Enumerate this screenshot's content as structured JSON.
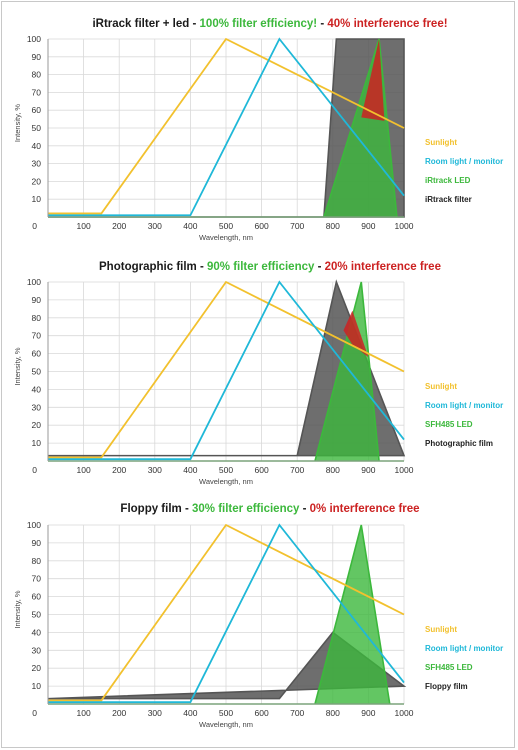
{
  "chart_data": [
    {
      "type": "area",
      "title_parts": [
        {
          "text": "iRtrack filter + led",
          "color": "#1a1a1a"
        },
        {
          "text": " - ",
          "color": "#1a1a1a"
        },
        {
          "text": "100% filter efficiency!",
          "color": "#3cb83c"
        },
        {
          "text": " - ",
          "color": "#1a1a1a"
        },
        {
          "text": "40% interference free!",
          "color": "#cc2222"
        }
      ],
      "xlabel": "Wavelength, nm",
      "ylabel": "Intensity, %",
      "xlim": [
        0,
        1000
      ],
      "ylim": [
        0,
        100
      ],
      "xticks": [
        0,
        100,
        200,
        300,
        400,
        500,
        600,
        700,
        800,
        900,
        1000
      ],
      "yticks": [
        10,
        20,
        30,
        40,
        50,
        60,
        70,
        80,
        90,
        100
      ],
      "grid": true,
      "legend_position": "right",
      "series": [
        {
          "name": "Sunlight",
          "color": "#f2c12e",
          "kind": "line",
          "points": [
            [
              0,
              2
            ],
            [
              150,
              2
            ],
            [
              500,
              100
            ],
            [
              1000,
              50
            ]
          ]
        },
        {
          "name": "Room light / monitor",
          "color": "#1fb8d8",
          "kind": "line",
          "points": [
            [
              0,
              1
            ],
            [
              400,
              1
            ],
            [
              650,
              100
            ],
            [
              1000,
              12
            ]
          ]
        },
        {
          "name": "iRtrack LED",
          "color": "#3cb83c",
          "kind": "area",
          "points": [
            [
              0,
              0
            ],
            [
              775,
              0
            ],
            [
              930,
              100
            ],
            [
              980,
              0
            ],
            [
              1000,
              0
            ]
          ]
        },
        {
          "name": "iRtrack filter",
          "color": "#555555",
          "kind": "area",
          "points": [
            [
              0,
              0
            ],
            [
              775,
              0
            ],
            [
              810,
              100
            ],
            [
              1000,
              100
            ],
            [
              1000,
              0
            ]
          ]
        }
      ],
      "interference": {
        "color": "#cc2222",
        "polygon": [
          [
            880,
            56
          ],
          [
            930,
            100
          ],
          [
            945,
            54
          ]
        ]
      }
    },
    {
      "type": "area",
      "title_parts": [
        {
          "text": "Photographic film",
          "color": "#1a1a1a"
        },
        {
          "text": " - ",
          "color": "#1a1a1a"
        },
        {
          "text": "90% filter efficiency",
          "color": "#3cb83c"
        },
        {
          "text": " - ",
          "color": "#1a1a1a"
        },
        {
          "text": "20% interference free",
          "color": "#cc2222"
        }
      ],
      "xlabel": "Wavelength, nm",
      "ylabel": "Intensity, %",
      "xlim": [
        0,
        1000
      ],
      "ylim": [
        0,
        100
      ],
      "xticks": [
        0,
        100,
        200,
        300,
        400,
        500,
        600,
        700,
        800,
        900,
        1000
      ],
      "yticks": [
        10,
        20,
        30,
        40,
        50,
        60,
        70,
        80,
        90,
        100
      ],
      "grid": true,
      "legend_position": "right",
      "series": [
        {
          "name": "Sunlight",
          "color": "#f2c12e",
          "kind": "line",
          "points": [
            [
              0,
              2
            ],
            [
              150,
              2
            ],
            [
              500,
              100
            ],
            [
              1000,
              50
            ]
          ]
        },
        {
          "name": "Room light / monitor",
          "color": "#1fb8d8",
          "kind": "line",
          "points": [
            [
              0,
              1
            ],
            [
              400,
              1
            ],
            [
              650,
              100
            ],
            [
              1000,
              12
            ]
          ]
        },
        {
          "name": "SFH485 LED",
          "color": "#3cb83c",
          "kind": "area",
          "points": [
            [
              0,
              0
            ],
            [
              750,
              0
            ],
            [
              880,
              100
            ],
            [
              930,
              0
            ],
            [
              1000,
              0
            ]
          ]
        },
        {
          "name": "Photographic film",
          "color": "#555555",
          "kind": "area",
          "points": [
            [
              0,
              3
            ],
            [
              700,
              3
            ],
            [
              810,
              100
            ],
            [
              1000,
              3
            ]
          ]
        }
      ],
      "interference": {
        "color": "#cc2222",
        "polygon": [
          [
            830,
            73
          ],
          [
            855,
            84
          ],
          [
            900,
            58
          ],
          [
            855,
            65
          ]
        ]
      }
    },
    {
      "type": "area",
      "title_parts": [
        {
          "text": "Floppy film",
          "color": "#1a1a1a"
        },
        {
          "text": " - ",
          "color": "#1a1a1a"
        },
        {
          "text": "30% filter efficiency",
          "color": "#3cb83c"
        },
        {
          "text": " - ",
          "color": "#1a1a1a"
        },
        {
          "text": "0% interference free",
          "color": "#cc2222"
        }
      ],
      "xlabel": "Wavelength, nm",
      "ylabel": "Intensity, %",
      "xlim": [
        0,
        1000
      ],
      "ylim": [
        0,
        100
      ],
      "xticks": [
        0,
        100,
        200,
        300,
        400,
        500,
        600,
        700,
        800,
        900,
        1000
      ],
      "yticks": [
        10,
        20,
        30,
        40,
        50,
        60,
        70,
        80,
        90,
        100
      ],
      "grid": true,
      "legend_position": "right",
      "series": [
        {
          "name": "Sunlight",
          "color": "#f2c12e",
          "kind": "line",
          "points": [
            [
              0,
              2
            ],
            [
              150,
              2
            ],
            [
              500,
              100
            ],
            [
              1000,
              50
            ]
          ]
        },
        {
          "name": "Room light / monitor",
          "color": "#1fb8d8",
          "kind": "line",
          "points": [
            [
              0,
              1
            ],
            [
              400,
              1
            ],
            [
              650,
              100
            ],
            [
              1000,
              12
            ]
          ]
        },
        {
          "name": "SFH485 LED",
          "color": "#3cb83c",
          "kind": "area",
          "points": [
            [
              0,
              0
            ],
            [
              750,
              0
            ],
            [
              880,
              100
            ],
            [
              960,
              0
            ],
            [
              1000,
              0
            ]
          ]
        },
        {
          "name": "Floppy film",
          "color": "#555555",
          "kind": "area",
          "points": [
            [
              0,
              3
            ],
            [
              650,
              3
            ],
            [
              800,
              40
            ],
            [
              1000,
              10
            ]
          ]
        }
      ],
      "interference": null
    }
  ]
}
